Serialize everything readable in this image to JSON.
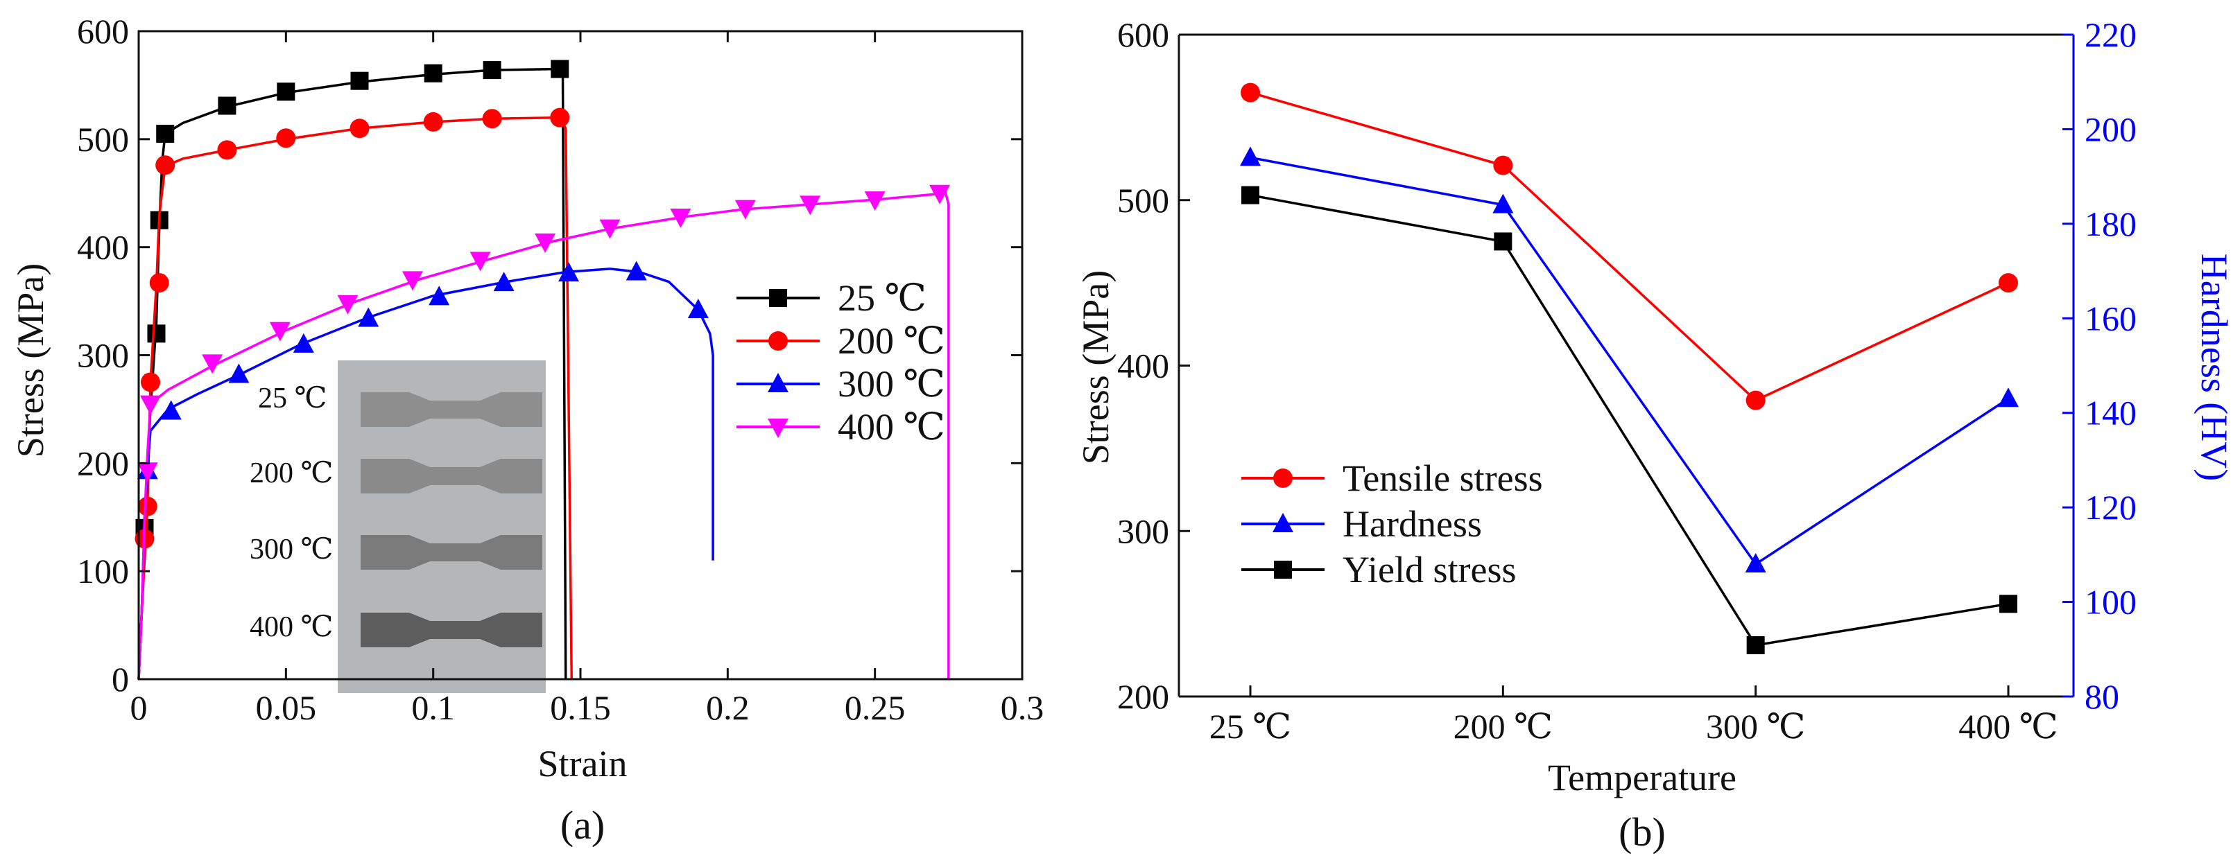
{
  "figure": {
    "panels": [
      {
        "label": "(a)",
        "inset_labels": [
          "25 ℃",
          "200 ℃",
          "300 ℃",
          "400 ℃"
        ]
      },
      {
        "label": "(b)"
      }
    ]
  },
  "chart_data": [
    {
      "type": "line",
      "title": "",
      "xlabel": "Strain",
      "ylabel": "Stress (MPa)",
      "xlim": [
        0,
        0.3
      ],
      "ylim": [
        0,
        600
      ],
      "xticks": [
        0,
        0.05,
        0.1,
        0.15,
        0.2,
        0.25,
        0.3
      ],
      "xtick_labels": [
        "0",
        "0.05",
        "0.1",
        "0.15",
        "0.2",
        "0.25",
        "0.3"
      ],
      "yticks": [
        0,
        100,
        200,
        300,
        400,
        500,
        600
      ],
      "ytick_labels": [
        "0",
        "100",
        "200",
        "300",
        "400",
        "500",
        "600"
      ],
      "legend_position": "right-middle",
      "grid": false,
      "series": [
        {
          "name": "25 ℃",
          "color": "#000000",
          "marker": "square",
          "curve": [
            [
              0,
              0
            ],
            [
              0.001,
              60
            ],
            [
              0.002,
              140
            ],
            [
              0.004,
              250
            ],
            [
              0.006,
              330
            ],
            [
              0.007,
              420
            ],
            [
              0.008,
              480
            ],
            [
              0.009,
              505
            ],
            [
              0.015,
              515
            ],
            [
              0.03,
              530
            ],
            [
              0.05,
              543
            ],
            [
              0.075,
              553
            ],
            [
              0.1,
              560
            ],
            [
              0.12,
              564
            ],
            [
              0.143,
              565
            ],
            [
              0.144,
              560
            ],
            [
              0.145,
              0
            ]
          ],
          "markers": [
            [
              0.002,
              140
            ],
            [
              0.006,
              320
            ],
            [
              0.007,
              425
            ],
            [
              0.009,
              505
            ],
            [
              0.03,
              531
            ],
            [
              0.05,
              544
            ],
            [
              0.075,
              554
            ],
            [
              0.1,
              561
            ],
            [
              0.12,
              564
            ],
            [
              0.143,
              565
            ]
          ]
        },
        {
          "name": "200 ℃",
          "color": "#ff0000",
          "marker": "circle",
          "curve": [
            [
              0,
              0
            ],
            [
              0.001,
              60
            ],
            [
              0.003,
              160
            ],
            [
              0.004,
              275
            ],
            [
              0.006,
              365
            ],
            [
              0.007,
              430
            ],
            [
              0.009,
              475
            ],
            [
              0.015,
              482
            ],
            [
              0.03,
              490
            ],
            [
              0.05,
              500
            ],
            [
              0.075,
              510
            ],
            [
              0.1,
              516
            ],
            [
              0.12,
              519
            ],
            [
              0.143,
              520
            ],
            [
              0.145,
              510
            ],
            [
              0.147,
              0
            ]
          ],
          "markers": [
            [
              0.002,
              130
            ],
            [
              0.003,
              160
            ],
            [
              0.004,
              275
            ],
            [
              0.007,
              367
            ],
            [
              0.009,
              476
            ],
            [
              0.03,
              490
            ],
            [
              0.05,
              501
            ],
            [
              0.075,
              510
            ],
            [
              0.1,
              516
            ],
            [
              0.12,
              519
            ],
            [
              0.143,
              520
            ]
          ]
        },
        {
          "name": "300 ℃",
          "color": "#0000ff",
          "marker": "triangle",
          "curve": [
            [
              0,
              0
            ],
            [
              0.001,
              60
            ],
            [
              0.002,
              150
            ],
            [
              0.003,
              195
            ],
            [
              0.004,
              230
            ],
            [
              0.01,
              250
            ],
            [
              0.02,
              264
            ],
            [
              0.035,
              283
            ],
            [
              0.055,
              310
            ],
            [
              0.078,
              335
            ],
            [
              0.1,
              355
            ],
            [
              0.125,
              368
            ],
            [
              0.145,
              377
            ],
            [
              0.16,
              380
            ],
            [
              0.17,
              377
            ],
            [
              0.18,
              368
            ],
            [
              0.19,
              342
            ],
            [
              0.194,
              320
            ],
            [
              0.195,
              300
            ],
            [
              0.195,
              110
            ]
          ],
          "markers": [
            [
              0.003,
              193
            ],
            [
              0.011,
              248
            ],
            [
              0.034,
              282
            ],
            [
              0.056,
              310
            ],
            [
              0.078,
              334
            ],
            [
              0.102,
              354
            ],
            [
              0.124,
              367
            ],
            [
              0.146,
              376
            ],
            [
              0.169,
              377
            ],
            [
              0.19,
              342
            ]
          ]
        },
        {
          "name": "400 ℃",
          "color": "#ff00ff",
          "marker": "triangle-down",
          "curve": [
            [
              0,
              0
            ],
            [
              0.001,
              60
            ],
            [
              0.002,
              150
            ],
            [
              0.003,
              210
            ],
            [
              0.004,
              255
            ],
            [
              0.01,
              268
            ],
            [
              0.025,
              290
            ],
            [
              0.05,
              323
            ],
            [
              0.072,
              348
            ],
            [
              0.095,
              370
            ],
            [
              0.118,
              388
            ],
            [
              0.14,
              405
            ],
            [
              0.16,
              417
            ],
            [
              0.185,
              428
            ],
            [
              0.205,
              435
            ],
            [
              0.23,
              440
            ],
            [
              0.25,
              444
            ],
            [
              0.274,
              450
            ],
            [
              0.275,
              440
            ],
            [
              0.275,
              0
            ]
          ],
          "markers": [
            [
              0.003,
              193
            ],
            [
              0.004,
              255
            ],
            [
              0.025,
              293
            ],
            [
              0.048,
              323
            ],
            [
              0.071,
              348
            ],
            [
              0.093,
              370
            ],
            [
              0.116,
              388
            ],
            [
              0.138,
              405
            ],
            [
              0.16,
              418
            ],
            [
              0.184,
              428
            ],
            [
              0.206,
              436
            ],
            [
              0.228,
              440
            ],
            [
              0.25,
              444
            ],
            [
              0.272,
              450
            ]
          ]
        }
      ]
    },
    {
      "type": "line",
      "title": "",
      "xlabel": "Temperature",
      "ylabel": "Stress (MPa)",
      "y2label": "Hardness (HV)",
      "categories": [
        "25 ℃",
        "200 ℃",
        "300 ℃",
        "400 ℃"
      ],
      "ylim": [
        200,
        600
      ],
      "y2lim": [
        80,
        220
      ],
      "yticks": [
        200,
        300,
        400,
        500,
        600
      ],
      "ytick_labels": [
        "200",
        "300",
        "400",
        "500",
        "600"
      ],
      "y2ticks": [
        80,
        100,
        120,
        140,
        160,
        180,
        200,
        220
      ],
      "y2tick_labels": [
        "80",
        "100",
        "120",
        "140",
        "160",
        "180",
        "200",
        "220"
      ],
      "y2_color": "#0000ff",
      "legend_position": "left-middle",
      "grid": false,
      "series": [
        {
          "name": "Tensile stress",
          "color": "#ff0000",
          "marker": "circle",
          "axis": "left",
          "values": [
            565,
            521,
            379,
            450
          ]
        },
        {
          "name": "Hardness",
          "color": "#0000ff",
          "marker": "triangle",
          "axis": "right",
          "values": [
            194,
            184,
            108,
            143
          ]
        },
        {
          "name": "Yield stress",
          "color": "#000000",
          "marker": "square",
          "axis": "left",
          "values": [
            503,
            475,
            231,
            256
          ]
        }
      ]
    }
  ]
}
